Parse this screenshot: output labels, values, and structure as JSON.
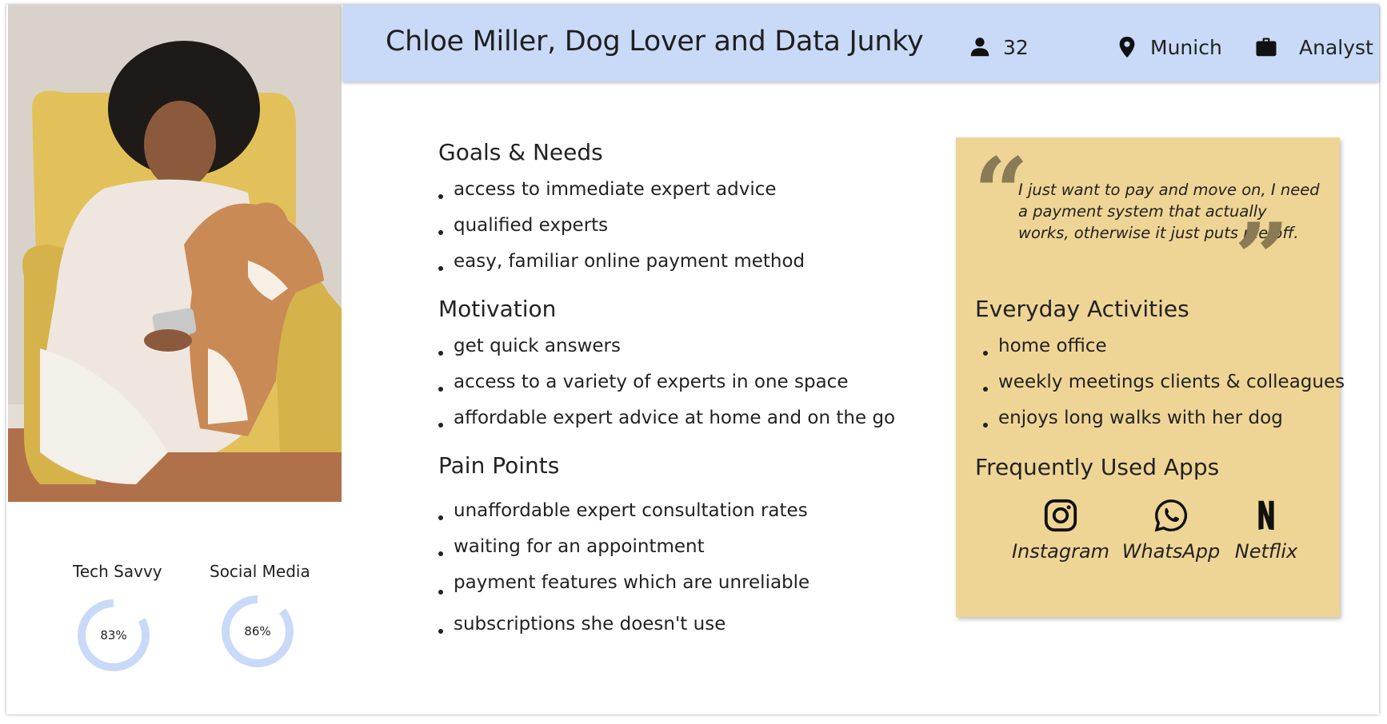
{
  "persona": {
    "title": "Chloe Miller, Dog Lover and Data Junky",
    "age": "32",
    "location": "Munich",
    "job": "Analyst",
    "photo_alt": "Woman in pajamas sitting in a yellow armchair with a Shiba Inu dog, holding a phone"
  },
  "icons": {
    "age": "person-icon",
    "location": "map-pin-icon",
    "job": "briefcase-icon"
  },
  "goals": {
    "title": "Goals & Needs",
    "items": [
      "access to immediate expert advice",
      "qualified experts",
      "easy, familiar online payment method"
    ]
  },
  "motivation": {
    "title": "Motivation",
    "items": [
      "get quick answers",
      "access to a variety of experts in one space",
      "affordable expert advice at home and on the go"
    ]
  },
  "pain_points": {
    "title": "Pain Points",
    "items": [
      "unaffordable expert consultation rates",
      "waiting for an appointment",
      "payment features which are unreliable",
      "subscriptions she doesn't use"
    ]
  },
  "quote": "I just want to pay and move on, I need a payment system that actually works, otherwise it just puts me off.",
  "activities": {
    "title": "Everyday Activities",
    "items": [
      "home office",
      "weekly meetings clients & colleagues",
      "enjoys long walks with her dog"
    ]
  },
  "apps": {
    "title": "Frequently Used Apps",
    "items": [
      {
        "label": "Instagram",
        "icon": "instagram-icon"
      },
      {
        "label": "WhatsApp",
        "icon": "whatsapp-icon"
      },
      {
        "label": "Netflix",
        "icon": "netflix-icon"
      }
    ]
  },
  "skills": [
    {
      "label": "Tech Savvy",
      "value": "83%",
      "percent": 83
    },
    {
      "label": "Social Media",
      "value": "86%",
      "percent": 86
    }
  ],
  "colors": {
    "header_bg": "#c9daf8",
    "panel_bg": "#efd595",
    "gauge_stroke": "#c9daf8",
    "quote_mark": "#8a7a55"
  }
}
